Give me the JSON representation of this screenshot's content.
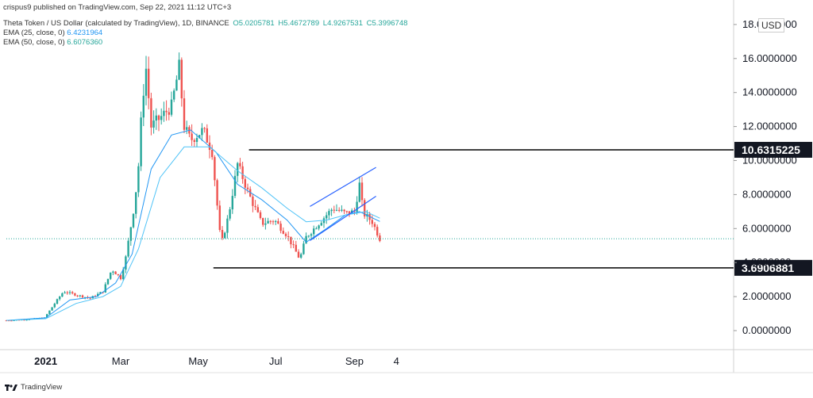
{
  "header": {
    "published": "crispus9 published on TradingView.com, Sep 22, 2021 11:12 UTC+3",
    "symbol": "Theta Token / US Dollar (calculated by TradingView), 1D, BINANCE",
    "open": "O5.0205781",
    "high": "H5.4672789",
    "low": "L4.9267531",
    "close": "C5.3996748",
    "ema1_label": "EMA (25, close, 0)",
    "ema1_value": "6.4231964",
    "ema2_label": "EMA (50, close, 0)",
    "ema2_value": "6.6076360",
    "currency": "USD",
    "footer": "TradingView"
  },
  "colors": {
    "up": "#26a69a",
    "down": "#ef5350",
    "ema25": "#2196f3",
    "ema50": "#4fc3f7",
    "level": "#000000",
    "channel": "#2962ff"
  },
  "chart_data": {
    "type": "candlestick",
    "x_ticks": [
      "2021",
      "Mar",
      "May",
      "Jul",
      "Sep",
      "4"
    ],
    "y_ticks": [
      "0.0000000",
      "2.0000000",
      "4.0000000",
      "6.0000000",
      "8.0000000",
      "10.0000000",
      "12.0000000",
      "14.0000000",
      "16.0000000",
      "18.0000000"
    ],
    "ylim": [
      -1,
      19
    ],
    "levels": [
      {
        "label": "10.6315225",
        "value": 10.6315225
      },
      {
        "label": "3.6906881",
        "value": 3.6906881
      }
    ],
    "current_price": 5.3996748,
    "price_path": [
      [
        "2020-12-01",
        0.6
      ],
      [
        "2020-12-15",
        0.65
      ],
      [
        "2020-12-31",
        0.75
      ],
      [
        "2021-01-10",
        1.8
      ],
      [
        "2021-01-15",
        2.3
      ],
      [
        "2021-01-25",
        2.1
      ],
      [
        "2021-02-05",
        1.9
      ],
      [
        "2021-02-15",
        2.3
      ],
      [
        "2021-02-22",
        3.6
      ],
      [
        "2021-03-01",
        3.1
      ],
      [
        "2021-03-05",
        4.3
      ],
      [
        "2021-03-12",
        7.5
      ],
      [
        "2021-03-15",
        9.7
      ],
      [
        "2021-03-18",
        13.5
      ],
      [
        "2021-03-21",
        15.4
      ],
      [
        "2021-03-25",
        12.0
      ],
      [
        "2021-04-01",
        12.5
      ],
      [
        "2021-04-10",
        13.2
      ],
      [
        "2021-04-16",
        15.5
      ],
      [
        "2021-04-20",
        12.0
      ],
      [
        "2021-04-25",
        11.2
      ],
      [
        "2021-05-05",
        11.8
      ],
      [
        "2021-05-12",
        10.5
      ],
      [
        "2021-05-19",
        5.0
      ],
      [
        "2021-05-25",
        6.8
      ],
      [
        "2021-06-01",
        9.8
      ],
      [
        "2021-06-10",
        8.0
      ],
      [
        "2021-06-20",
        6.3
      ],
      [
        "2021-06-30",
        6.5
      ],
      [
        "2021-07-10",
        5.6
      ],
      [
        "2021-07-20",
        4.2
      ],
      [
        "2021-07-25",
        5.5
      ],
      [
        "2021-08-05",
        6.4
      ],
      [
        "2021-08-15",
        7.2
      ],
      [
        "2021-08-25",
        6.9
      ],
      [
        "2021-09-01",
        7.0
      ],
      [
        "2021-09-05",
        8.6
      ],
      [
        "2021-09-08",
        6.9
      ],
      [
        "2021-09-15",
        6.4
      ],
      [
        "2021-09-21",
        5.4
      ]
    ],
    "ema25_path": [
      [
        "2020-12-01",
        0.6
      ],
      [
        "2021-01-01",
        0.75
      ],
      [
        "2021-01-20",
        1.8
      ],
      [
        "2021-02-10",
        2.0
      ],
      [
        "2021-02-25",
        2.8
      ],
      [
        "2021-03-10",
        4.5
      ],
      [
        "2021-03-25",
        9.5
      ],
      [
        "2021-04-10",
        11.5
      ],
      [
        "2021-04-25",
        11.8
      ],
      [
        "2021-05-15",
        10.5
      ],
      [
        "2021-06-01",
        8.6
      ],
      [
        "2021-06-20",
        7.7
      ],
      [
        "2021-07-10",
        6.5
      ],
      [
        "2021-07-25",
        5.2
      ],
      [
        "2021-08-10",
        6.0
      ],
      [
        "2021-08-25",
        6.8
      ],
      [
        "2021-09-05",
        7.0
      ],
      [
        "2021-09-21",
        6.42
      ]
    ],
    "ema50_path": [
      [
        "2020-12-01",
        0.6
      ],
      [
        "2021-01-01",
        0.7
      ],
      [
        "2021-01-25",
        1.6
      ],
      [
        "2021-02-15",
        2.0
      ],
      [
        "2021-03-01",
        2.6
      ],
      [
        "2021-03-15",
        4.8
      ],
      [
        "2021-04-01",
        9.0
      ],
      [
        "2021-04-20",
        10.8
      ],
      [
        "2021-05-10",
        10.8
      ],
      [
        "2021-06-01",
        9.4
      ],
      [
        "2021-06-20",
        8.4
      ],
      [
        "2021-07-10",
        7.2
      ],
      [
        "2021-07-25",
        6.4
      ],
      [
        "2021-08-10",
        6.5
      ],
      [
        "2021-08-25",
        6.8
      ],
      [
        "2021-09-10",
        7.0
      ],
      [
        "2021-09-21",
        6.61
      ]
    ],
    "channel_lines": [
      {
        "from": [
          "2021-07-28",
          7.3
        ],
        "to": [
          "2021-09-18",
          9.6
        ]
      },
      {
        "from": [
          "2021-07-28",
          5.3
        ],
        "to": [
          "2021-09-18",
          7.9
        ]
      }
    ]
  }
}
